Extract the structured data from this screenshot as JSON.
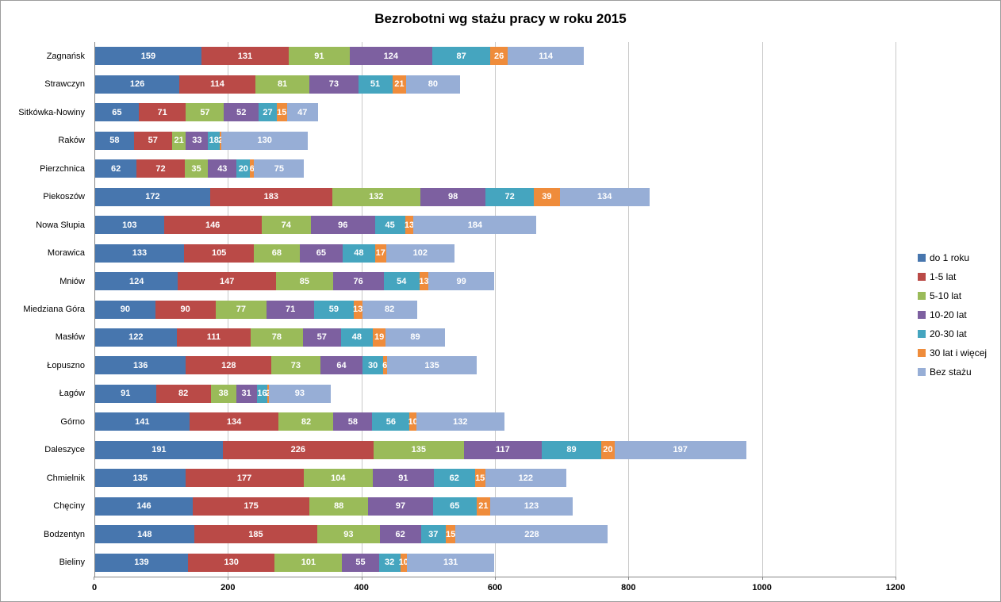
{
  "chart_data": {
    "type": "bar",
    "orientation": "horizontal",
    "stacked": true,
    "title": "Bezrobotni wg stażu pracy w roku 2015",
    "xlabel": "",
    "ylabel": "",
    "xlim": [
      0,
      1200
    ],
    "x_ticks": [
      0,
      200,
      400,
      600,
      800,
      1000,
      1200
    ],
    "grid": true,
    "legend_position": "right",
    "data_labels": true,
    "categories": [
      "Zagnańsk",
      "Strawczyn",
      "Sitkówka-Nowiny",
      "Raków",
      "Pierzchnica",
      "Piekoszów",
      "Nowa Słupia",
      "Morawica",
      "Mniów",
      "Miedziana Góra",
      "Masłów",
      "Łopuszno",
      "Łagów",
      "Górno",
      "Daleszyce",
      "Chmielnik",
      "Chęciny",
      "Bodzentyn",
      "Bieliny"
    ],
    "series": [
      {
        "name": "do 1 roku",
        "color": "#4776AE",
        "values": [
          159,
          126,
          65,
          58,
          62,
          172,
          103,
          133,
          124,
          90,
          122,
          136,
          91,
          141,
          191,
          135,
          146,
          148,
          139
        ]
      },
      {
        "name": "1-5 lat",
        "color": "#BA4A47",
        "values": [
          131,
          114,
          71,
          57,
          72,
          183,
          146,
          105,
          147,
          90,
          111,
          128,
          82,
          134,
          226,
          177,
          175,
          185,
          130
        ]
      },
      {
        "name": "5-10 lat",
        "color": "#9ABB59",
        "values": [
          91,
          81,
          57,
          21,
          35,
          132,
          74,
          68,
          85,
          77,
          78,
          73,
          38,
          82,
          135,
          104,
          88,
          93,
          101
        ]
      },
      {
        "name": "10-20 lat",
        "color": "#7D60A0",
        "values": [
          124,
          73,
          52,
          33,
          43,
          98,
          96,
          65,
          76,
          71,
          57,
          64,
          31,
          58,
          117,
          91,
          97,
          62,
          55
        ]
      },
      {
        "name": "20-30 lat",
        "color": "#45A5BF",
        "values": [
          87,
          51,
          27,
          18,
          20,
          72,
          45,
          48,
          54,
          59,
          48,
          30,
          16,
          56,
          89,
          62,
          65,
          37,
          32
        ]
      },
      {
        "name": "30 lat i więcej",
        "color": "#EF8C3B",
        "values": [
          26,
          21,
          15,
          2,
          6,
          39,
          13,
          17,
          13,
          13,
          19,
          6,
          2,
          10,
          20,
          15,
          21,
          15,
          10
        ]
      },
      {
        "name": "Bez stażu",
        "color": "#97AED6",
        "values": [
          114,
          80,
          47,
          130,
          75,
          134,
          184,
          102,
          99,
          82,
          89,
          135,
          93,
          132,
          197,
          122,
          123,
          228,
          131
        ]
      }
    ]
  }
}
